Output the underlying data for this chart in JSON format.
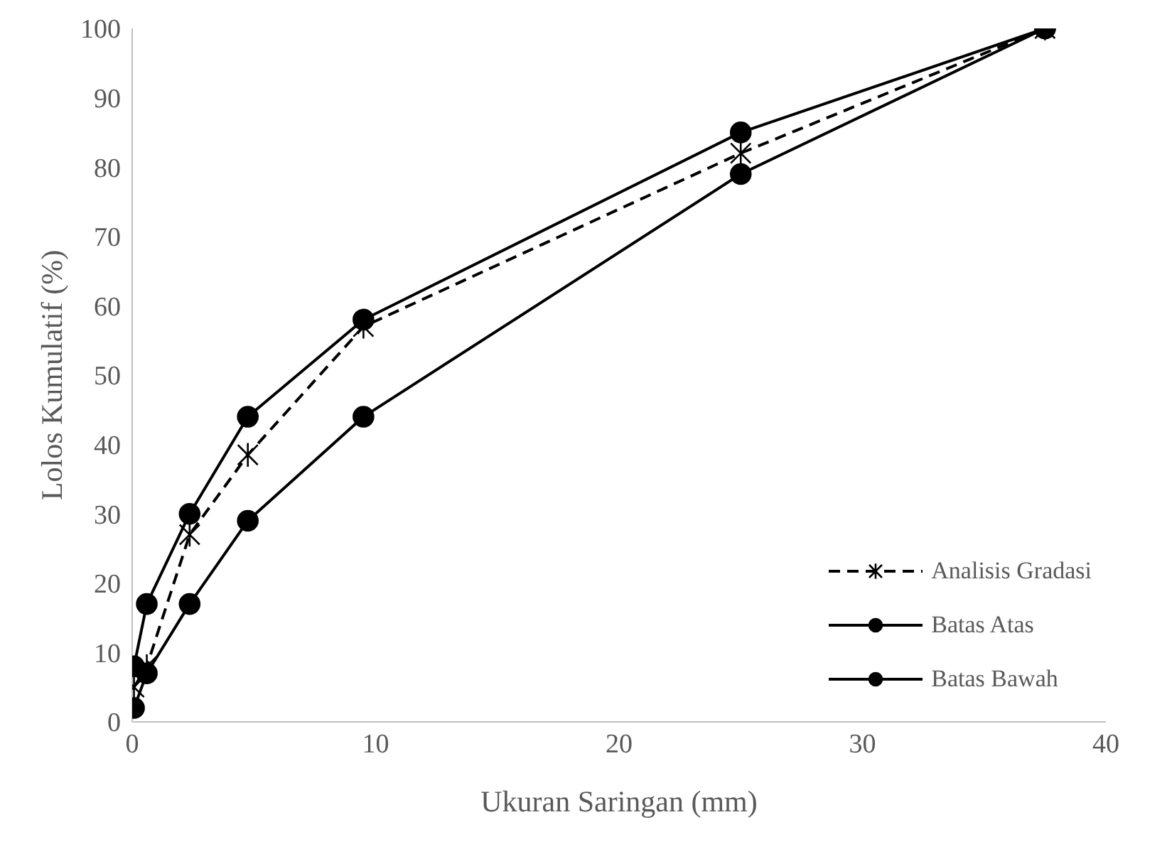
{
  "chart_data": {
    "type": "line",
    "xlabel": "Ukuran Saringan (mm)",
    "ylabel": "Lolos Kumulatif (%)",
    "x": [
      0.075,
      0.6,
      2.36,
      4.75,
      9.5,
      25,
      37.5
    ],
    "series": [
      {
        "name": "Analisis Gradasi",
        "color": "#000000",
        "values": [
          5,
          8,
          27,
          38.5,
          57,
          82,
          100
        ],
        "marker": "cross",
        "line_style": "dashed"
      },
      {
        "name": "Batas Atas",
        "color": "#000000",
        "values": [
          8,
          17,
          30,
          44,
          58,
          85,
          100
        ],
        "marker": "circle",
        "line_style": "solid"
      },
      {
        "name": "Batas Bawah",
        "color": "#000000",
        "values": [
          2,
          7,
          17,
          29,
          44,
          79,
          100
        ],
        "marker": "circle",
        "line_style": "solid"
      }
    ],
    "xlim": [
      0,
      40
    ],
    "xticks": [
      0,
      10,
      20,
      30,
      40
    ],
    "ylim": [
      0,
      100
    ],
    "yticks": [
      0,
      10,
      20,
      30,
      40,
      50,
      60,
      70,
      80,
      90,
      100
    ],
    "grid": false,
    "legend": "right"
  }
}
